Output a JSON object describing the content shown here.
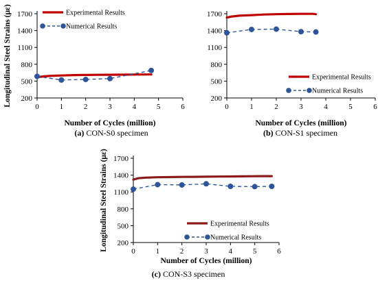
{
  "chart_data": [
    {
      "type": "line",
      "xlabel": "Number of Cycles (million)",
      "ylabel": "Longitudinal Steel Strains (με)",
      "xlim": [
        0,
        6
      ],
      "ylim": [
        200,
        1700
      ],
      "xticks": [
        0,
        1,
        2,
        3,
        4,
        5,
        6
      ],
      "yticks": [
        200,
        500,
        800,
        1100,
        1400,
        1700
      ],
      "grid": false,
      "legend_position": "top-left",
      "caption_label": "(a)",
      "caption_text": "CON-S0 specimen",
      "series": [
        {
          "name": "Experimental Results",
          "style": "solid",
          "color": "#C00000",
          "x": [
            0,
            0.3,
            0.6,
            1,
            1.5,
            2,
            2.5,
            3,
            3.5,
            4,
            4.5,
            4.7
          ],
          "y": [
            570,
            585,
            595,
            600,
            607,
            610,
            612,
            613,
            615,
            617,
            618,
            618
          ]
        },
        {
          "name": "Numerical Results",
          "style": "dashed",
          "color": "#2E5597",
          "x": [
            0,
            1,
            2,
            3,
            4.7
          ],
          "y": [
            585,
            520,
            530,
            545,
            690
          ]
        }
      ]
    },
    {
      "type": "line",
      "xlabel": "Number of Cycles (million)",
      "ylabel": "",
      "xlim": [
        0,
        6
      ],
      "ylim": [
        200,
        1700
      ],
      "xticks": [
        0,
        1,
        2,
        3,
        4,
        5,
        6
      ],
      "yticks": [
        200,
        500,
        800,
        1100,
        1400,
        1700
      ],
      "grid": false,
      "legend_position": "bottom-right",
      "caption_label": "(b)",
      "caption_text": "CON-S1 specimen",
      "series": [
        {
          "name": "Experimental Results",
          "style": "solid",
          "color": "#C00000",
          "x": [
            0,
            0.2,
            0.5,
            1,
            1.5,
            2,
            2.5,
            3,
            3.3,
            3.5,
            3.6
          ],
          "y": [
            1630,
            1650,
            1665,
            1675,
            1685,
            1692,
            1695,
            1697,
            1698,
            1697,
            1690
          ]
        },
        {
          "name": "Numerical Results",
          "style": "dashed",
          "color": "#2E5597",
          "x": [
            0,
            1,
            2,
            3,
            3.6
          ],
          "y": [
            1360,
            1420,
            1425,
            1380,
            1375
          ]
        }
      ]
    },
    {
      "type": "line",
      "xlabel": "Number of Cycles (million)",
      "ylabel": "Longitudinal Steel Strains (με)",
      "xlim": [
        0,
        6
      ],
      "ylim": [
        200,
        1700
      ],
      "xticks": [
        0,
        1,
        2,
        3,
        4,
        5,
        6
      ],
      "yticks": [
        200,
        500,
        800,
        1100,
        1400,
        1700
      ],
      "grid": false,
      "legend_position": "bottom-right",
      "caption_label": "(c)",
      "caption_text": "CON-S3 specimen",
      "series": [
        {
          "name": "Experimental Results",
          "style": "solid",
          "color": "#8B1A1A",
          "x": [
            0,
            0.2,
            0.5,
            1,
            1.5,
            2,
            2.5,
            3,
            3.5,
            4,
            4.5,
            5,
            5.5,
            5.7
          ],
          "y": [
            1320,
            1345,
            1355,
            1362,
            1365,
            1368,
            1370,
            1372,
            1374,
            1376,
            1378,
            1380,
            1382,
            1382
          ]
        },
        {
          "name": "Numerical Results",
          "style": "dashed",
          "color": "#2E5597",
          "x": [
            0,
            1,
            2,
            3,
            4,
            5,
            5.7
          ],
          "y": [
            1150,
            1230,
            1225,
            1245,
            1200,
            1195,
            1200
          ]
        }
      ]
    }
  ]
}
